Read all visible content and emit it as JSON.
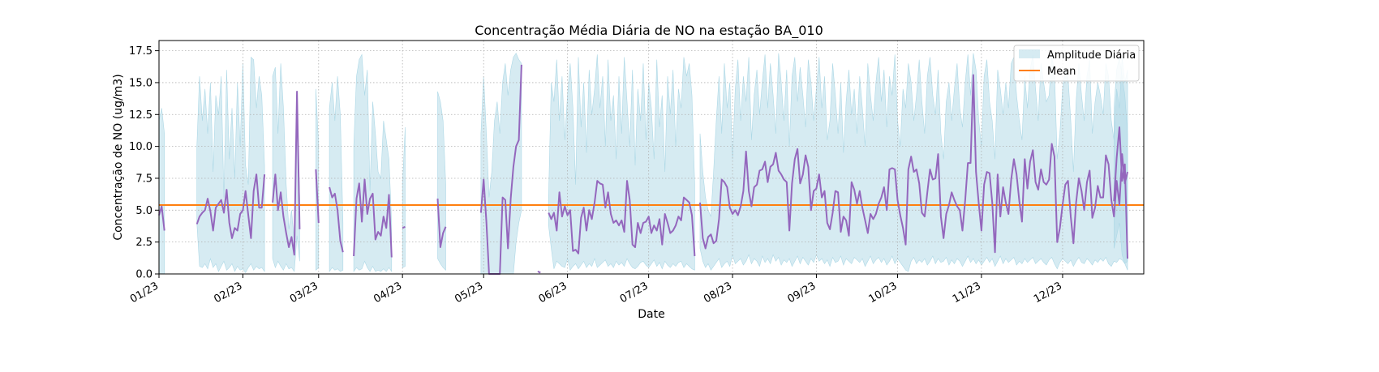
{
  "chart_data": {
    "type": "line",
    "title": "Concentração Média Diária de NO na estação BA_010",
    "xlabel": "Date",
    "ylabel": "Concentração de NO (ug/m3)",
    "x_range": [
      "2023-01-01",
      "2023-12-31"
    ],
    "ylim": [
      0,
      18.3
    ],
    "grid": true,
    "legend_position": "top-right",
    "y_ticks": [
      "0.0",
      "2.5",
      "5.0",
      "7.5",
      "10.0",
      "12.5",
      "15.0",
      "17.5"
    ],
    "y_tick_values": [
      0,
      2.5,
      5,
      7.5,
      10,
      12.5,
      15,
      17.5
    ],
    "x_ticks": [
      {
        "label": "01/23",
        "date": "2023-01-01"
      },
      {
        "label": "02/23",
        "date": "2023-02-01"
      },
      {
        "label": "03/23",
        "date": "2023-03-01"
      },
      {
        "label": "04/23",
        "date": "2023-04-01"
      },
      {
        "label": "05/23",
        "date": "2023-05-01"
      },
      {
        "label": "06/23",
        "date": "2023-06-01"
      },
      {
        "label": "07/23",
        "date": "2023-07-01"
      },
      {
        "label": "08/23",
        "date": "2023-08-01"
      },
      {
        "label": "09/23",
        "date": "2023-09-01"
      },
      {
        "label": "10/23",
        "date": "2023-10-01"
      },
      {
        "label": "11/23",
        "date": "2023-11-01"
      },
      {
        "label": "12/23",
        "date": "2023-12-01"
      }
    ],
    "mean_value": 5.4,
    "legend": {
      "band": "Amplitude Diária",
      "mean": "Mean"
    },
    "colors": {
      "line": "#9467bd",
      "band": "#add8e6",
      "mean": "#ff7f0e"
    },
    "segments": [
      {
        "start": "2023-01-01",
        "mean": [
          4.6,
          5.3,
          3.4
        ],
        "min": [
          0.0,
          0.0,
          0.0
        ],
        "max": [
          12.0,
          13.0,
          11.0
        ]
      },
      {
        "start": "2023-01-15",
        "mean": [
          3.9,
          4.5,
          4.8,
          5.0,
          5.9,
          4.9,
          3.4,
          5.2,
          5.5,
          5.8,
          4.8,
          6.6,
          4.0,
          2.8,
          3.6,
          3.4,
          4.7,
          5.0,
          6.5,
          4.6,
          2.8,
          6.5,
          7.8,
          5.2,
          5.2,
          7.8
        ],
        "min": [
          4.0,
          0.6,
          0.5,
          0.8,
          0.4,
          1.2,
          0.5,
          0.8,
          0.2,
          0.6,
          1.0,
          0.3,
          0.5,
          0.8,
          0.2,
          0.6,
          0.3,
          0.4,
          0.1,
          0.5,
          0.8,
          0.3,
          0.6,
          0.4,
          0.5,
          0.2
        ],
        "max": [
          10.0,
          15.5,
          12.0,
          14.5,
          11.0,
          15.0,
          8.0,
          14.0,
          12.5,
          15.5,
          6.0,
          16.0,
          9.0,
          13.0,
          7.5,
          15.0,
          10.0,
          16.5,
          8.5,
          7.0,
          17.0,
          16.8,
          13.0,
          15.5,
          14.0,
          8.5
        ]
      },
      {
        "start": "2023-02-12",
        "mean": [
          5.6,
          7.8,
          5.0,
          6.4,
          4.5,
          3.2,
          2.1,
          2.9,
          1.5,
          14.3,
          3.5
        ],
        "min": [
          1.2,
          0.5,
          1.0,
          0.6,
          0.3,
          0.8,
          0.4,
          0.5,
          0.2,
          3.0,
          1.0
        ],
        "max": [
          15.5,
          16.2,
          11.0,
          16.5,
          13.0,
          7.0,
          3.5,
          5.0,
          2.5,
          14.0,
          6.0
        ]
      },
      {
        "start": "2023-02-28",
        "mean": [
          8.2,
          4.0
        ],
        "min": [
          0.3,
          0.5
        ],
        "max": [
          14.5,
          10.0
        ]
      },
      {
        "start": "2023-03-05",
        "mean": [
          6.8,
          6.0,
          6.3,
          5.0,
          2.6,
          1.7
        ],
        "min": [
          0.2,
          0.5,
          0.3,
          0.4,
          0.2,
          0.3
        ],
        "max": [
          13.0,
          15.0,
          12.0,
          15.5,
          12.5,
          4.0
        ]
      },
      {
        "start": "2023-03-14",
        "mean": [
          1.4,
          5.9,
          7.1,
          4.1,
          7.4,
          4.7,
          5.9,
          6.3,
          2.7,
          3.3,
          3.0,
          4.5,
          3.6,
          6.2,
          1.3
        ],
        "min": [
          0.2,
          0.5,
          0.3,
          0.4,
          1.0,
          0.5,
          0.2,
          0.6,
          0.2,
          0.3,
          0.2,
          0.4,
          0.2,
          0.5,
          0.2
        ],
        "max": [
          10.0,
          15.5,
          16.8,
          17.2,
          14.0,
          16.0,
          6.5,
          13.5,
          11.0,
          8.0,
          7.5,
          12.0,
          10.5,
          9.0,
          4.0
        ]
      },
      {
        "start": "2023-04-01",
        "mean": [
          3.6,
          3.7
        ],
        "min": [
          0.5,
          0.6
        ],
        "max": [
          7.0,
          11.5
        ]
      },
      {
        "start": "2023-04-14",
        "mean": [
          5.9,
          2.1,
          3.2,
          3.7
        ],
        "min": [
          1.2,
          0.8,
          0.5,
          0.3
        ],
        "max": [
          14.3,
          13.5,
          12.0,
          7.0
        ]
      },
      {
        "start": "2023-04-30",
        "mean": [
          4.8,
          7.4,
          4.1,
          0.0,
          0.0,
          0.0,
          0.0,
          0.0,
          6.0,
          5.8,
          2.0,
          5.9,
          8.4,
          10.0,
          10.5,
          16.4
        ],
        "min": [
          0.0,
          0.0,
          0.0,
          0.0,
          0.0,
          0.0,
          0.0,
          0.0,
          0.0,
          0.0,
          0.0,
          0.0,
          0.0,
          2.5,
          4.0,
          5.0
        ],
        "max": [
          11.0,
          15.5,
          11.0,
          6.0,
          8.0,
          12.0,
          13.5,
          11.0,
          15.0,
          16.5,
          14.0,
          16.0,
          17.0,
          17.3,
          16.8,
          16.5
        ]
      },
      {
        "start": "2023-05-21",
        "mean": [
          0.2,
          0.1
        ],
        "min": [
          0.0,
          0.0
        ],
        "max": [
          0.0,
          0.0
        ]
      },
      {
        "start": "2023-05-25",
        "mean": [
          4.8,
          4.3,
          4.8,
          3.4,
          6.4,
          4.5,
          5.3,
          4.6,
          5.0,
          1.8,
          1.9,
          1.6,
          4.4,
          5.2,
          3.4,
          5.0,
          4.3,
          5.6,
          7.3,
          7.1,
          7.0,
          5.2,
          6.4,
          4.7,
          4.0,
          4.2,
          3.8,
          4.2,
          3.3,
          7.3,
          5.8,
          2.3,
          2.1,
          4.0,
          3.2,
          4.0,
          4.1,
          4.5,
          3.2,
          3.8,
          3.4,
          4.3,
          2.3,
          4.7,
          4.0,
          3.2,
          3.4,
          3.8,
          4.5,
          4.2,
          6.0,
          5.8,
          5.6,
          4.6,
          1.4
        ],
        "min": [
          3.8,
          2.0,
          0.4,
          1.0,
          0.8,
          0.6,
          0.5,
          1.2,
          0.3,
          0.6,
          0.8,
          0.4,
          0.7,
          1.0,
          0.5,
          0.8,
          0.6,
          1.2,
          0.5,
          0.7,
          0.9,
          1.1,
          0.6,
          0.8,
          0.5,
          1.0,
          0.7,
          0.9,
          0.6,
          1.2,
          0.8,
          0.5,
          0.4,
          0.6,
          0.9,
          1.0,
          0.7,
          0.5,
          0.8,
          1.1,
          0.6,
          0.9,
          0.4,
          1.0,
          0.7,
          0.5,
          0.8,
          0.6,
          0.9,
          1.0,
          0.5,
          0.8,
          0.6,
          0.4,
          0.3
        ],
        "max": [
          6.0,
          15.0,
          13.5,
          16.8,
          12.0,
          15.5,
          10.5,
          14.0,
          16.5,
          13.0,
          7.0,
          17.0,
          11.5,
          15.0,
          9.5,
          16.0,
          12.5,
          14.5,
          17.2,
          13.0,
          15.5,
          10.0,
          16.8,
          12.0,
          14.0,
          9.0,
          15.5,
          11.0,
          17.0,
          13.5,
          10.0,
          16.0,
          8.5,
          14.5,
          12.0,
          16.5,
          10.5,
          15.0,
          13.0,
          9.0,
          16.8,
          11.5,
          14.0,
          8.0,
          15.5,
          12.5,
          16.0,
          10.0,
          14.5,
          13.0,
          17.0,
          15.5,
          16.5,
          14.0,
          7.0
        ]
      },
      {
        "start": "2023-07-20",
        "mean": [
          5.6,
          2.8,
          2.0,
          2.9,
          3.1,
          2.4,
          2.6,
          4.3,
          7.4,
          7.2,
          6.8,
          5.2,
          4.7,
          5.0,
          4.6,
          5.3,
          6.5,
          9.6,
          6.5,
          5.3,
          6.8,
          7.0,
          8.1,
          8.2,
          8.8,
          7.2,
          8.4,
          8.6,
          9.5,
          8.1,
          7.8,
          7.4,
          7.2,
          3.4,
          7.1,
          9.0,
          9.8,
          7.1,
          7.8,
          9.3,
          8.4,
          5.0,
          6.5,
          6.7,
          7.8,
          6.0,
          6.5,
          4.0,
          3.5,
          4.8,
          6.5,
          6.4,
          3.3,
          4.5,
          4.2,
          3.0,
          7.2,
          6.6,
          5.5,
          6.5,
          5.2,
          4.2,
          3.2,
          4.7,
          4.3,
          4.7,
          5.5,
          6.0,
          6.8,
          5.0,
          8.2,
          8.3,
          8.2,
          5.8,
          4.6,
          3.6,
          2.3,
          8.2,
          9.2,
          8.0,
          8.2,
          7.1,
          4.8,
          4.5,
          6.4,
          8.2,
          7.4,
          7.5,
          9.4,
          4.5,
          2.8,
          4.7,
          5.4,
          6.4,
          5.8,
          5.3,
          5.0,
          3.4,
          5.8,
          8.7,
          8.7,
          15.6,
          8.0,
          5.5,
          3.4,
          7.0,
          8.0,
          7.9,
          5.6,
          1.7,
          7.8,
          4.5,
          6.8,
          5.6,
          4.7,
          7.4,
          9.0,
          7.8,
          5.7,
          4.1,
          9.0,
          6.7,
          8.8,
          9.7,
          7.2,
          6.6,
          8.2,
          7.2,
          7.0,
          7.4,
          10.2,
          9.2,
          2.5,
          3.6,
          5.4,
          7.0,
          7.3,
          4.5,
          2.4,
          5.6,
          7.5,
          6.5,
          5.0,
          7.2,
          8.1,
          4.4,
          5.2,
          6.9,
          6.0,
          6.0,
          9.3,
          8.6,
          5.8,
          4.5,
          7.3,
          5.4,
          9.4,
          7.1,
          8.0
        ],
        "min": [
          2.0,
          1.0,
          0.5,
          0.8,
          0.3,
          0.6,
          0.9,
          1.2,
          0.5,
          0.8,
          1.0,
          0.6,
          1.5,
          0.8,
          1.0,
          1.2,
          0.7,
          1.0,
          1.5,
          0.8,
          1.2,
          1.0,
          0.6,
          1.4,
          0.9,
          1.2,
          0.8,
          1.5,
          1.0,
          1.3,
          0.7,
          1.1,
          0.9,
          1.2,
          0.6,
          1.0,
          1.4,
          0.8,
          1.3,
          1.0,
          0.7,
          1.2,
          0.9,
          1.5,
          1.0,
          1.2,
          0.8,
          1.1,
          0.6,
          1.3,
          0.9,
          1.0,
          1.4,
          0.7,
          1.2,
          1.0,
          0.8,
          1.3,
          1.1,
          0.9,
          1.2,
          0.6,
          1.0,
          1.4,
          0.8,
          1.1,
          1.3,
          0.9,
          1.2,
          0.7,
          1.0,
          1.4,
          0.8,
          1.2,
          0.9,
          0.6,
          0.3,
          0.2,
          1.0,
          1.3,
          0.8,
          1.1,
          0.9,
          1.2,
          0.7,
          1.0,
          1.4,
          0.8,
          1.2,
          0.9,
          1.0,
          1.3,
          0.7,
          1.1,
          0.8,
          1.2,
          1.0,
          0.6,
          1.0,
          1.4,
          0.9,
          1.2,
          0.8,
          1.1,
          0.7,
          1.0,
          1.3,
          0.9,
          1.2,
          0.6,
          1.0,
          1.4,
          0.8,
          1.2,
          0.9,
          1.1,
          1.3,
          0.7,
          1.0,
          0.8,
          1.2,
          0.9,
          1.1,
          1.3,
          0.8,
          1.0,
          1.2,
          0.9,
          0.7,
          1.1,
          1.3,
          0.8,
          0.4,
          0.9,
          1.2,
          1.0,
          0.8,
          1.1,
          0.6,
          1.0,
          1.3,
          0.9,
          0.8,
          1.2,
          1.0,
          0.7,
          1.1,
          0.9,
          1.2,
          1.0,
          1.3,
          0.8,
          0.6,
          1.0,
          0.9,
          1.2,
          1.1,
          0.8,
          1.0
        ],
        "max": [
          11.0,
          8.0,
          6.0,
          5.0,
          4.5,
          8.0,
          12.0,
          15.5,
          11.0,
          16.5,
          13.0,
          15.0,
          9.0,
          14.5,
          16.8,
          12.0,
          15.5,
          13.5,
          17.0,
          10.5,
          14.0,
          16.0,
          12.5,
          15.0,
          17.2,
          13.0,
          16.5,
          14.0,
          11.0,
          17.3,
          15.0,
          12.0,
          16.0,
          10.0,
          15.5,
          17.0,
          13.5,
          16.2,
          14.0,
          11.5,
          16.8,
          15.0,
          12.0,
          14.5,
          17.0,
          13.0,
          15.5,
          10.5,
          12.0,
          16.5,
          14.0,
          11.0,
          15.0,
          9.5,
          13.5,
          16.0,
          12.5,
          14.5,
          11.0,
          15.5,
          13.0,
          10.0,
          16.5,
          14.0,
          12.0,
          15.0,
          17.0,
          13.5,
          16.0,
          11.5,
          15.5,
          14.0,
          17.2,
          12.0,
          10.0,
          14.5,
          13.0,
          16.5,
          15.0,
          12.0,
          14.0,
          16.8,
          13.5,
          11.0,
          15.5,
          17.0,
          14.0,
          12.5,
          16.0,
          11.0,
          9.0,
          13.5,
          15.0,
          12.0,
          14.5,
          16.5,
          13.0,
          11.5,
          15.0,
          17.2,
          14.0,
          17.3,
          16.0,
          12.0,
          10.0,
          15.5,
          16.8,
          13.5,
          12.0,
          9.0,
          16.0,
          14.5,
          12.5,
          15.0,
          13.0,
          16.5,
          17.0,
          14.0,
          12.0,
          10.5,
          15.5,
          13.0,
          16.0,
          17.2,
          14.5,
          12.0,
          16.5,
          15.0,
          13.5,
          14.0,
          17.0,
          16.0,
          9.0,
          11.0,
          14.5,
          16.0,
          15.5,
          12.0,
          8.0,
          13.5,
          16.5,
          14.0,
          12.0,
          15.5,
          16.8,
          11.0,
          13.5,
          15.0,
          14.0,
          12.5,
          16.5,
          15.5,
          12.0,
          10.5,
          14.5,
          13.0,
          17.0,
          15.0,
          16.0
        ]
      },
      {
        "start": "2023-12-20",
        "mean": [
          5.7,
          9.1,
          11.5,
          7.3,
          8.6,
          1.2
        ],
        "min": [
          2.0,
          3.0,
          4.0,
          1.5,
          0.8,
          0.3
        ],
        "max": [
          13.0,
          16.0,
          17.0,
          15.5,
          14.0,
          11.0
        ]
      }
    ]
  }
}
